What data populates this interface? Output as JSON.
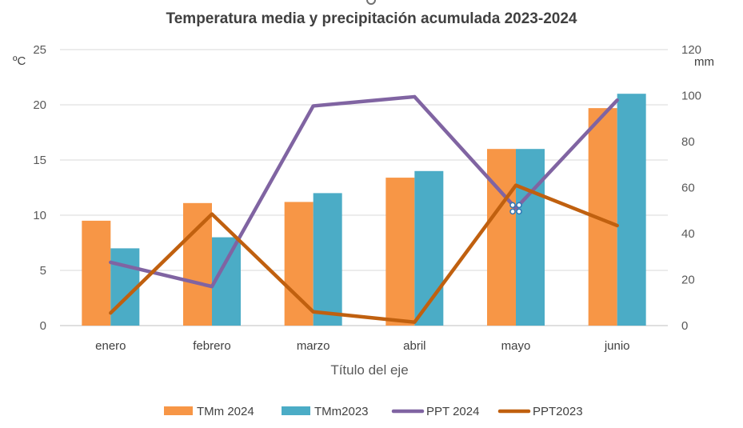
{
  "chart_data": {
    "type": "bar",
    "title": "Temperatura media y precipitación acumulada 2023-2024",
    "xlabel": "Título del eje",
    "ylabel_left": "ºC",
    "ylabel_right": "mm",
    "categories": [
      "enero",
      "febrero",
      "marzo",
      "abril",
      "mayo",
      "junio"
    ],
    "ylim_left": [
      0,
      25
    ],
    "yticks_left": [
      0,
      5,
      10,
      15,
      20,
      25
    ],
    "ylim_right": [
      0,
      120
    ],
    "yticks_right": [
      0,
      20,
      40,
      60,
      80,
      100,
      120
    ],
    "grid": true,
    "legend_position": "bottom",
    "series": [
      {
        "name": "TMm 2024",
        "type": "bar",
        "axis": "left",
        "color": "#F79646",
        "values": [
          9.5,
          11.1,
          11.2,
          13.4,
          16.0,
          19.7
        ]
      },
      {
        "name": "TMm2023",
        "type": "bar",
        "axis": "left",
        "color": "#4BACC6",
        "values": [
          7.0,
          8.0,
          12.0,
          14.0,
          16.0,
          21.0
        ]
      },
      {
        "name": "PPT 2024",
        "type": "line",
        "axis": "right",
        "color": "#8064A2",
        "values": [
          27.5,
          17.0,
          95.5,
          99.5,
          51.0,
          98.0
        ]
      },
      {
        "name": "PPT2023",
        "type": "line",
        "axis": "right",
        "color": "#C0600F",
        "values": [
          5.5,
          48.5,
          6.0,
          1.5,
          61.0,
          43.5
        ]
      }
    ]
  }
}
